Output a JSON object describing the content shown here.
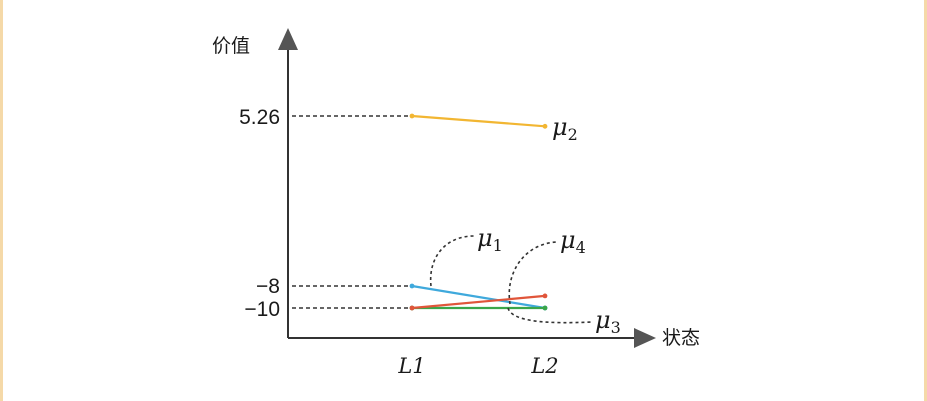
{
  "chart_data": {
    "type": "line",
    "title": "",
    "xlabel": "状态",
    "ylabel": "价值",
    "categories": [
      "L1",
      "L2"
    ],
    "yticks": [
      "5.26",
      "−8",
      "−10"
    ],
    "ytick_values": [
      5.26,
      -8,
      -10
    ],
    "grid": false,
    "legend": "none",
    "series": [
      {
        "name": "μ1",
        "symbol": "μ",
        "sub": "1",
        "values": [
          -8,
          -10
        ],
        "color": "#3fa9dc"
      },
      {
        "name": "μ2",
        "symbol": "μ",
        "sub": "2",
        "values": [
          5.26,
          4.4
        ],
        "color": "#f2b632"
      },
      {
        "name": "μ3",
        "symbol": "μ",
        "sub": "3",
        "values": [
          -10,
          -10
        ],
        "color": "#3aa64a"
      },
      {
        "name": "μ4",
        "symbol": "μ",
        "sub": "4",
        "values": [
          -10,
          -8.9
        ],
        "color": "#e0553a"
      }
    ]
  }
}
